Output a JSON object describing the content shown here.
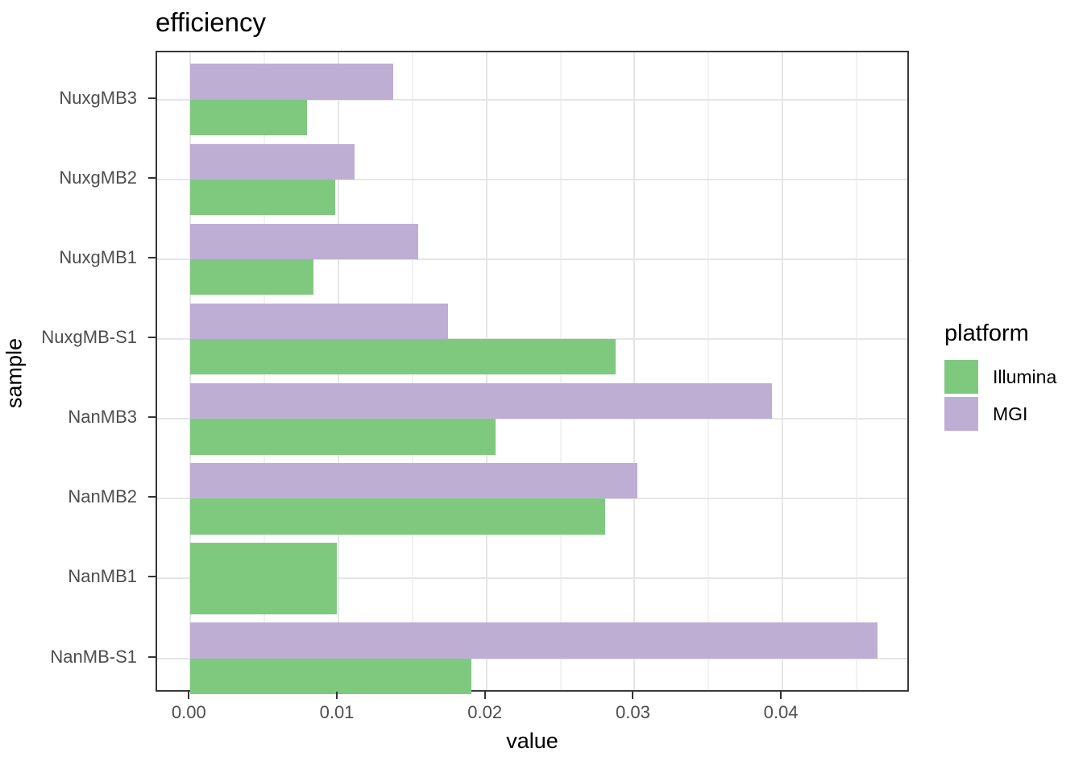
{
  "chart_data": {
    "type": "bar",
    "orientation": "horizontal",
    "title": "efficiency",
    "xlabel": "value",
    "ylabel": "sample",
    "categories": [
      "NuxgMB3",
      "NuxgMB2",
      "NuxgMB1",
      "NuxgMB-S1",
      "NanMB3",
      "NanMB2",
      "NanMB1",
      "NanMB-S1"
    ],
    "series": [
      {
        "name": "Illumina",
        "color": "#7FC97F",
        "values": [
          0.0079,
          0.0098,
          0.0083,
          0.0287,
          0.0206,
          0.028,
          0.0099,
          0.019
        ]
      },
      {
        "name": "MGI",
        "color": "#BEAED4",
        "values": [
          0.0137,
          0.0111,
          0.0154,
          0.0174,
          0.0393,
          0.0302,
          null,
          0.0464
        ]
      }
    ],
    "x_ticks": [
      0,
      0.01,
      0.02,
      0.03,
      0.04
    ],
    "x_tick_labels": [
      "0.00",
      "0.01",
      "0.02",
      "0.03",
      "0.04"
    ],
    "x_minor_ticks": [
      0.005,
      0.015,
      0.025,
      0.035,
      0.045
    ],
    "xlim": [
      -0.00225,
      0.04865
    ],
    "grid": "x-major, x-minor, y-major",
    "legend": {
      "position": "right",
      "title": "platform",
      "entries": [
        {
          "label": "Illumina",
          "color": "#7FC97F"
        },
        {
          "label": "MGI",
          "color": "#BEAED4"
        }
      ]
    },
    "colors": {
      "panel_border": "#383838",
      "grid_major": "#e6e6e6",
      "grid_minor": "#f2f2f2",
      "tick_mark": "#333333",
      "tick_text": "#4d4d4d",
      "title_text": "#000000"
    }
  }
}
